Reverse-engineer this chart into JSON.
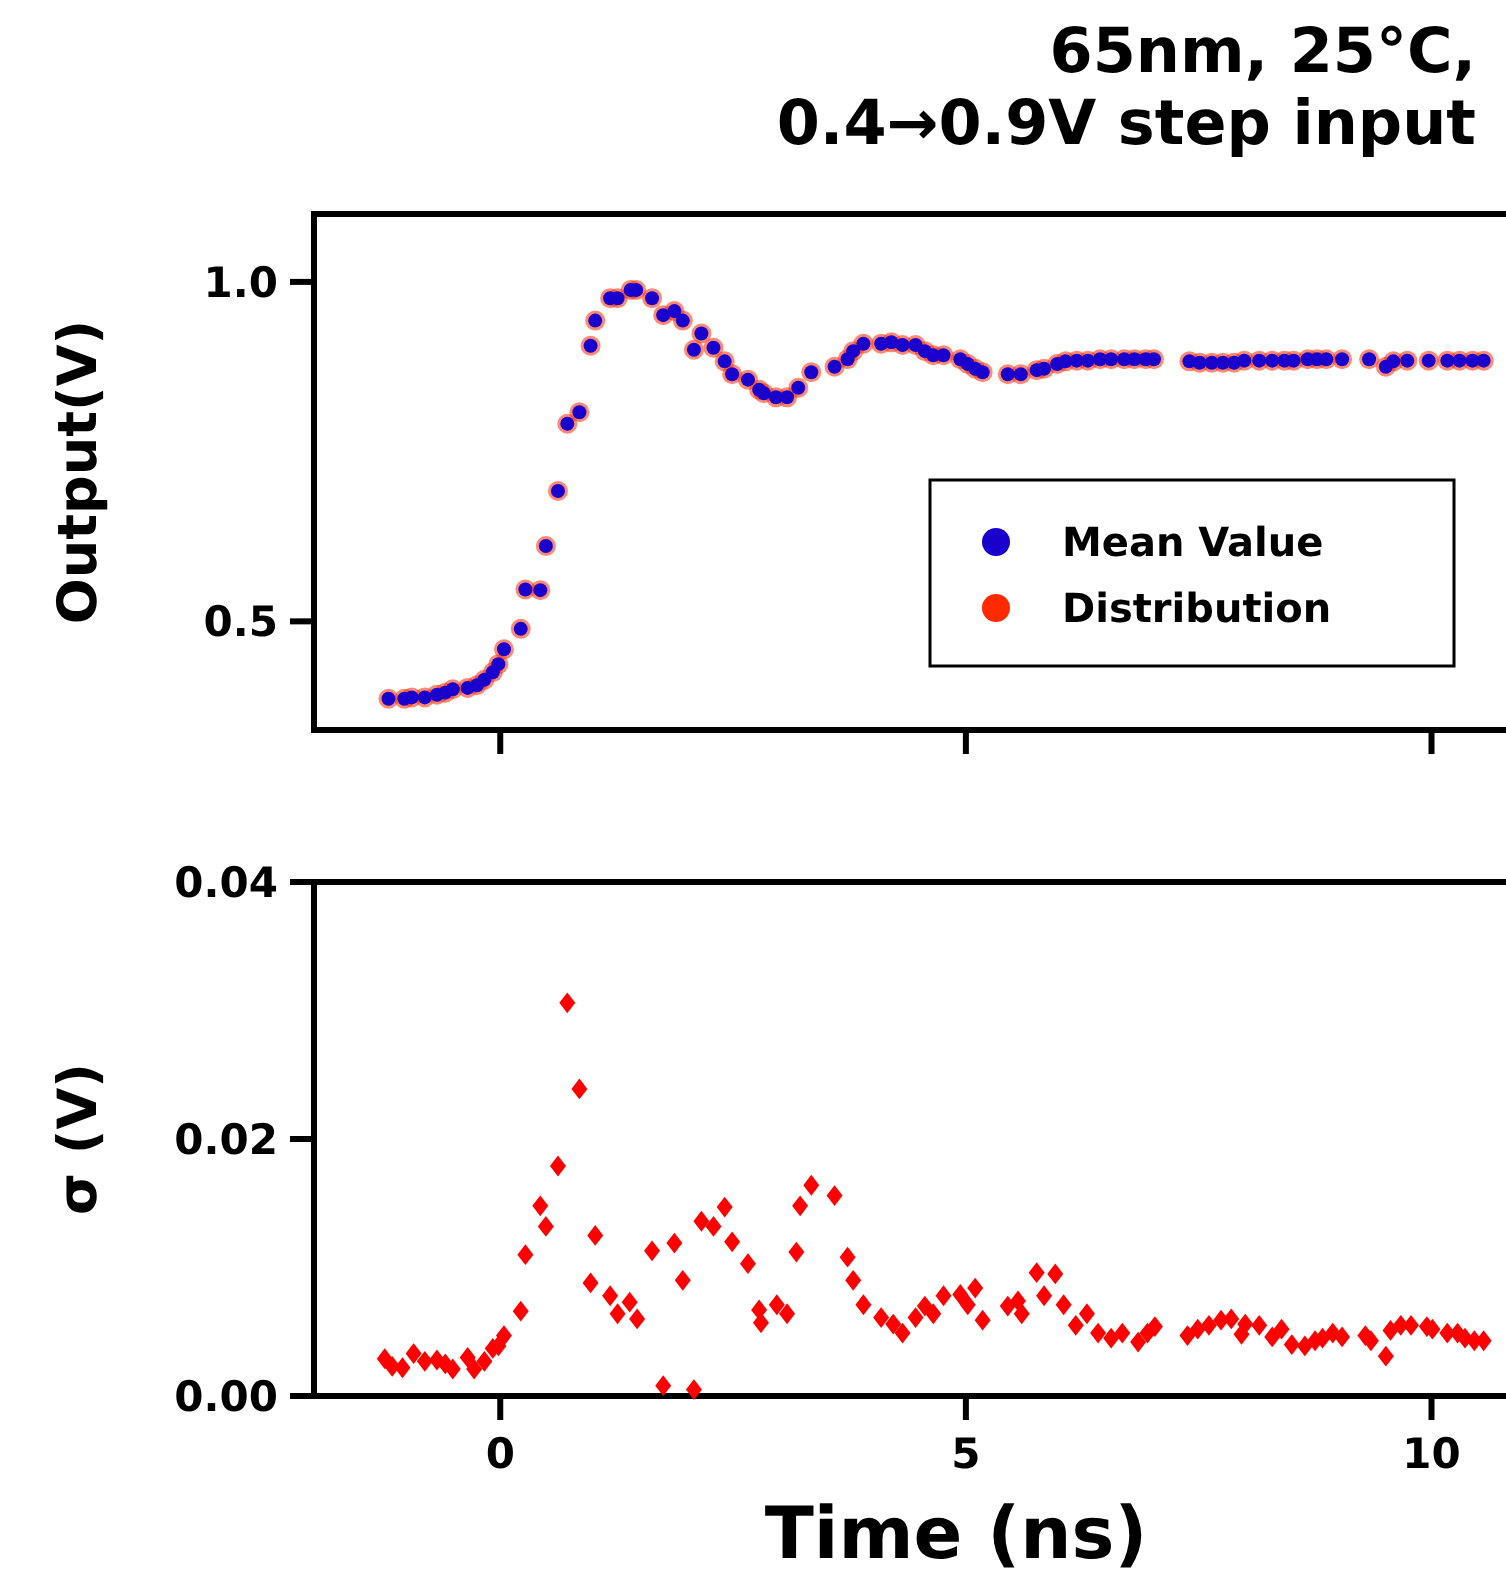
{
  "chart_data": [
    {
      "type": "scatter",
      "title": "65nm, 25°C, 0.4→0.9V step input",
      "ylabel": "Output(V)",
      "xlim": [
        -2,
        10.8
      ],
      "ylim": [
        0.34,
        1.1
      ],
      "xticks": [
        0,
        5,
        10
      ],
      "yticks": [
        0.5,
        {
          "value": 1,
          "label": "1.0"
        }
      ],
      "tick_labels": "y",
      "legend": "right",
      "marker": "circle",
      "x": [
        -1.2,
        -1.03,
        -0.95,
        -0.81,
        -0.68,
        -0.59,
        -0.51,
        -0.35,
        -0.25,
        -0.17,
        -0.08,
        -0.02,
        0.04,
        0.22,
        0.27,
        0.43,
        0.49,
        0.62,
        0.72,
        0.85,
        0.97,
        1.02,
        1.18,
        1.26,
        1.4,
        1.46,
        1.63,
        1.75,
        1.87,
        1.96,
        2.08,
        2.16,
        2.29,
        2.41,
        2.49,
        2.66,
        2.78,
        2.83,
        2.96,
        3.08,
        3.2,
        3.34,
        3.59,
        3.73,
        3.79,
        3.9,
        4.09,
        4.2,
        4.32,
        4.46,
        4.56,
        4.65,
        4.76,
        4.94,
        5.02,
        5.1,
        5.18,
        5.45,
        5.59,
        5.76,
        5.84,
        5.98,
        6.07,
        6.19,
        6.31,
        6.44,
        6.56,
        6.7,
        6.81,
        6.93,
        7.02,
        7.4,
        7.51,
        7.64,
        7.76,
        7.88,
        7.99,
        8.15,
        8.29,
        8.42,
        8.52,
        8.67,
        8.77,
        8.87,
        9.04,
        9.33,
        9.51,
        9.59,
        9.74,
        9.97,
        10.17,
        10.3,
        10.44,
        10.56
      ],
      "series": [
        {
          "name": "Distribution",
          "color": "#ff2a00",
          "values": [
            0.386,
            0.386,
            0.388,
            0.388,
            0.392,
            0.395,
            0.4,
            0.402,
            0.406,
            0.414,
            0.425,
            0.437,
            0.459,
            0.489,
            0.547,
            0.546,
            0.611,
            0.692,
            0.791,
            0.808,
            0.906,
            0.943,
            0.976,
            0.976,
            0.988,
            0.988,
            0.976,
            0.951,
            0.957,
            0.943,
            0.9,
            0.924,
            0.903,
            0.883,
            0.864,
            0.856,
            0.841,
            0.836,
            0.83,
            0.83,
            0.844,
            0.867,
            0.875,
            0.886,
            0.898,
            0.909,
            0.909,
            0.911,
            0.907,
            0.907,
            0.898,
            0.892,
            0.892,
            0.886,
            0.879,
            0.872,
            0.867,
            0.864,
            0.864,
            0.87,
            0.872,
            0.879,
            0.883,
            0.884,
            0.884,
            0.886,
            0.886,
            0.886,
            0.886,
            0.886,
            0.886,
            0.883,
            0.881,
            0.881,
            0.881,
            0.881,
            0.884,
            0.884,
            0.884,
            0.884,
            0.884,
            0.886,
            0.886,
            0.886,
            0.886,
            0.886,
            0.875,
            0.883,
            0.884,
            0.884,
            0.884,
            0.884,
            0.884,
            0.884
          ]
        },
        {
          "name": "Mean Value",
          "color": "#1a00cc",
          "values": [
            0.386,
            0.386,
            0.388,
            0.388,
            0.392,
            0.395,
            0.4,
            0.402,
            0.406,
            0.414,
            0.425,
            0.437,
            0.459,
            0.489,
            0.547,
            0.546,
            0.611,
            0.692,
            0.791,
            0.808,
            0.906,
            0.943,
            0.976,
            0.976,
            0.988,
            0.988,
            0.976,
            0.951,
            0.957,
            0.943,
            0.9,
            0.924,
            0.903,
            0.883,
            0.864,
            0.856,
            0.841,
            0.836,
            0.83,
            0.83,
            0.844,
            0.867,
            0.875,
            0.886,
            0.898,
            0.909,
            0.909,
            0.911,
            0.907,
            0.907,
            0.898,
            0.892,
            0.892,
            0.886,
            0.879,
            0.872,
            0.867,
            0.864,
            0.864,
            0.87,
            0.872,
            0.879,
            0.883,
            0.884,
            0.884,
            0.886,
            0.886,
            0.886,
            0.886,
            0.886,
            0.886,
            0.883,
            0.881,
            0.881,
            0.881,
            0.881,
            0.884,
            0.884,
            0.884,
            0.884,
            0.884,
            0.886,
            0.886,
            0.886,
            0.886,
            0.886,
            0.875,
            0.883,
            0.884,
            0.884,
            0.884,
            0.884,
            0.884,
            0.884
          ]
        }
      ]
    },
    {
      "type": "scatter",
      "xlabel": "Time (ns)",
      "ylabel": "σ (V)",
      "xlim": [
        -2,
        10.8
      ],
      "ylim": [
        0,
        0.04
      ],
      "xticks": [
        0,
        5,
        10
      ],
      "yticks": [
        {
          "value": 0,
          "label": "0.00"
        },
        0.02,
        0.04
      ],
      "marker": "diamond",
      "x": [
        -1.24,
        -1.16,
        -1.05,
        -0.93,
        -0.81,
        -0.68,
        -0.59,
        -0.51,
        -0.35,
        -0.28,
        -0.17,
        -0.08,
        -0.02,
        0.04,
        0.22,
        0.27,
        0.43,
        0.49,
        0.62,
        0.72,
        0.85,
        0.97,
        1.02,
        1.18,
        1.26,
        1.39,
        1.47,
        1.63,
        1.75,
        1.87,
        1.96,
        2.08,
        2.16,
        2.29,
        2.41,
        2.49,
        2.66,
        2.78,
        2.8,
        2.97,
        3.08,
        3.18,
        3.22,
        3.34,
        3.59,
        3.73,
        3.79,
        3.9,
        4.09,
        4.22,
        4.32,
        4.46,
        4.56,
        4.65,
        4.76,
        4.94,
        5.02,
        5.1,
        5.18,
        5.45,
        5.56,
        5.6,
        5.76,
        5.84,
        5.96,
        6.05,
        6.18,
        6.3,
        6.42,
        6.56,
        6.68,
        6.85,
        6.95,
        7.03,
        7.38,
        7.49,
        7.61,
        7.74,
        7.85,
        7.96,
        8.0,
        8.15,
        8.29,
        8.39,
        8.5,
        8.64,
        8.75,
        8.83,
        8.94,
        9.04,
        9.29,
        9.35,
        9.51,
        9.56,
        9.67,
        9.78,
        9.95,
        10.01,
        10.17,
        10.28,
        10.36,
        10.46,
        10.56
      ],
      "series": [
        {
          "color": "#ff0000",
          "values": [
            0.0029,
            0.0023,
            0.0022,
            0.0033,
            0.0027,
            0.0028,
            0.0025,
            0.0021,
            0.003,
            0.0021,
            0.0027,
            0.0037,
            0.0039,
            0.0047,
            0.0066,
            0.011,
            0.0148,
            0.0132,
            0.0179,
            0.0306,
            0.0239,
            0.0088,
            0.0125,
            0.0078,
            0.0064,
            0.0073,
            0.006,
            0.0113,
            0.0008,
            0.0119,
            0.009,
            0.0005,
            0.0136,
            0.0132,
            0.0147,
            0.012,
            0.0103,
            0.0067,
            0.0057,
            0.0071,
            0.0064,
            0.0112,
            0.0148,
            0.0164,
            0.0156,
            0.0108,
            0.009,
            0.0071,
            0.0061,
            0.0056,
            0.0049,
            0.0061,
            0.007,
            0.0064,
            0.0078,
            0.0079,
            0.0071,
            0.0084,
            0.0059,
            0.007,
            0.0074,
            0.0064,
            0.0096,
            0.0078,
            0.0095,
            0.0071,
            0.0055,
            0.0064,
            0.0049,
            0.0045,
            0.0049,
            0.0042,
            0.0049,
            0.0054,
            0.0047,
            0.0052,
            0.0055,
            0.0059,
            0.006,
            0.0048,
            0.0056,
            0.0055,
            0.0046,
            0.0052,
            0.004,
            0.0039,
            0.0043,
            0.0045,
            0.0049,
            0.0046,
            0.0047,
            0.0043,
            0.0031,
            0.0051,
            0.0055,
            0.0055,
            0.0054,
            0.0052,
            0.0049,
            0.0049,
            0.0045,
            0.0043,
            0.0043
          ]
        }
      ]
    }
  ]
}
